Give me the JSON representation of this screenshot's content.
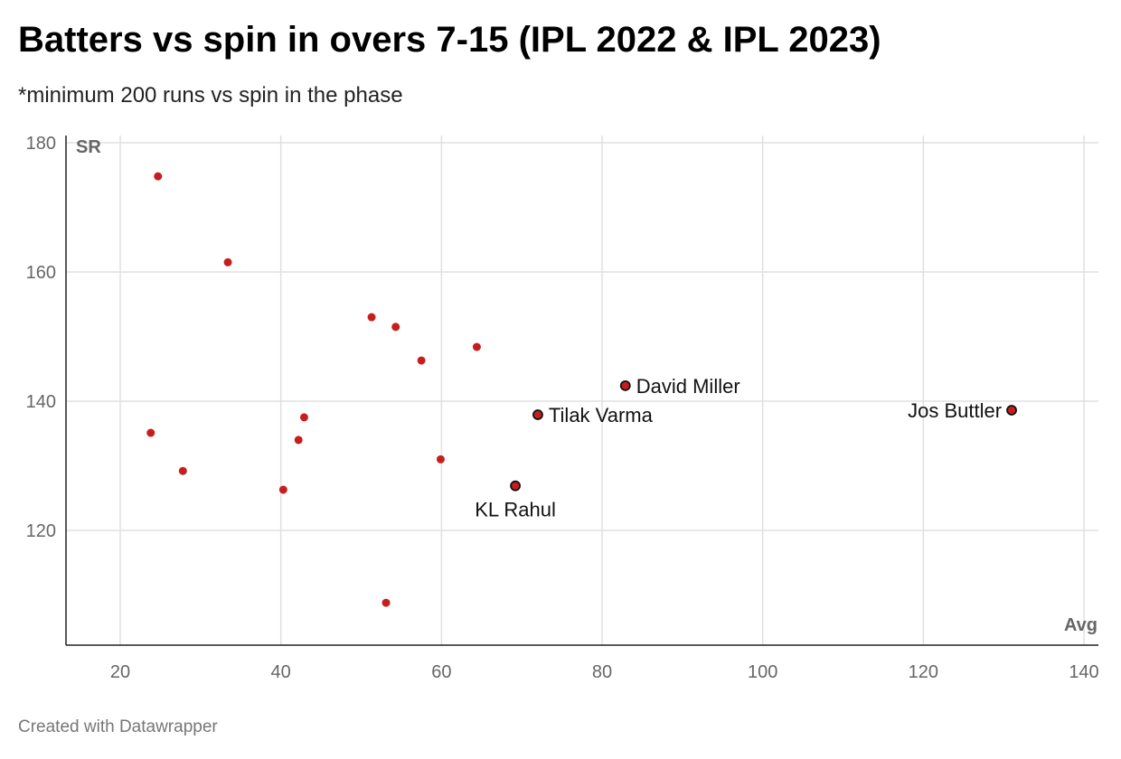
{
  "chart_data": {
    "type": "scatter",
    "title": "Batters vs spin in overs 7-15 (IPL 2022 & IPL 2023)",
    "subtitle": "*minimum 200 runs vs spin in the phase",
    "xlabel": "Avg",
    "ylabel": "SR",
    "xlim": [
      13,
      142
    ],
    "ylim": [
      102,
      181
    ],
    "xticks": [
      20,
      40,
      60,
      80,
      100,
      120,
      140
    ],
    "yticks": [
      120,
      140,
      160,
      180
    ],
    "grid": true,
    "point_color": "#c71e1d",
    "points": [
      {
        "x": 24.7,
        "y": 174.8,
        "label": ""
      },
      {
        "x": 33.4,
        "y": 161.5,
        "label": ""
      },
      {
        "x": 51.3,
        "y": 153.0,
        "label": ""
      },
      {
        "x": 54.3,
        "y": 151.5,
        "label": ""
      },
      {
        "x": 57.5,
        "y": 146.3,
        "label": ""
      },
      {
        "x": 64.4,
        "y": 148.4,
        "label": ""
      },
      {
        "x": 82.9,
        "y": 142.4,
        "label": "David Miller",
        "anchor": "right"
      },
      {
        "x": 72.0,
        "y": 137.9,
        "label": "Tilak Varma",
        "anchor": "right"
      },
      {
        "x": 131.0,
        "y": 138.6,
        "label": "Jos Buttler",
        "anchor": "left"
      },
      {
        "x": 23.8,
        "y": 135.1,
        "label": ""
      },
      {
        "x": 42.9,
        "y": 137.5,
        "label": ""
      },
      {
        "x": 42.2,
        "y": 134.0,
        "label": ""
      },
      {
        "x": 27.8,
        "y": 129.2,
        "label": ""
      },
      {
        "x": 59.9,
        "y": 131.0,
        "label": ""
      },
      {
        "x": 40.3,
        "y": 126.3,
        "label": ""
      },
      {
        "x": 69.2,
        "y": 126.9,
        "label": "KL Rahul",
        "anchor": "below"
      },
      {
        "x": 53.1,
        "y": 108.8,
        "label": ""
      }
    ]
  },
  "footer": "Created with Datawrapper"
}
